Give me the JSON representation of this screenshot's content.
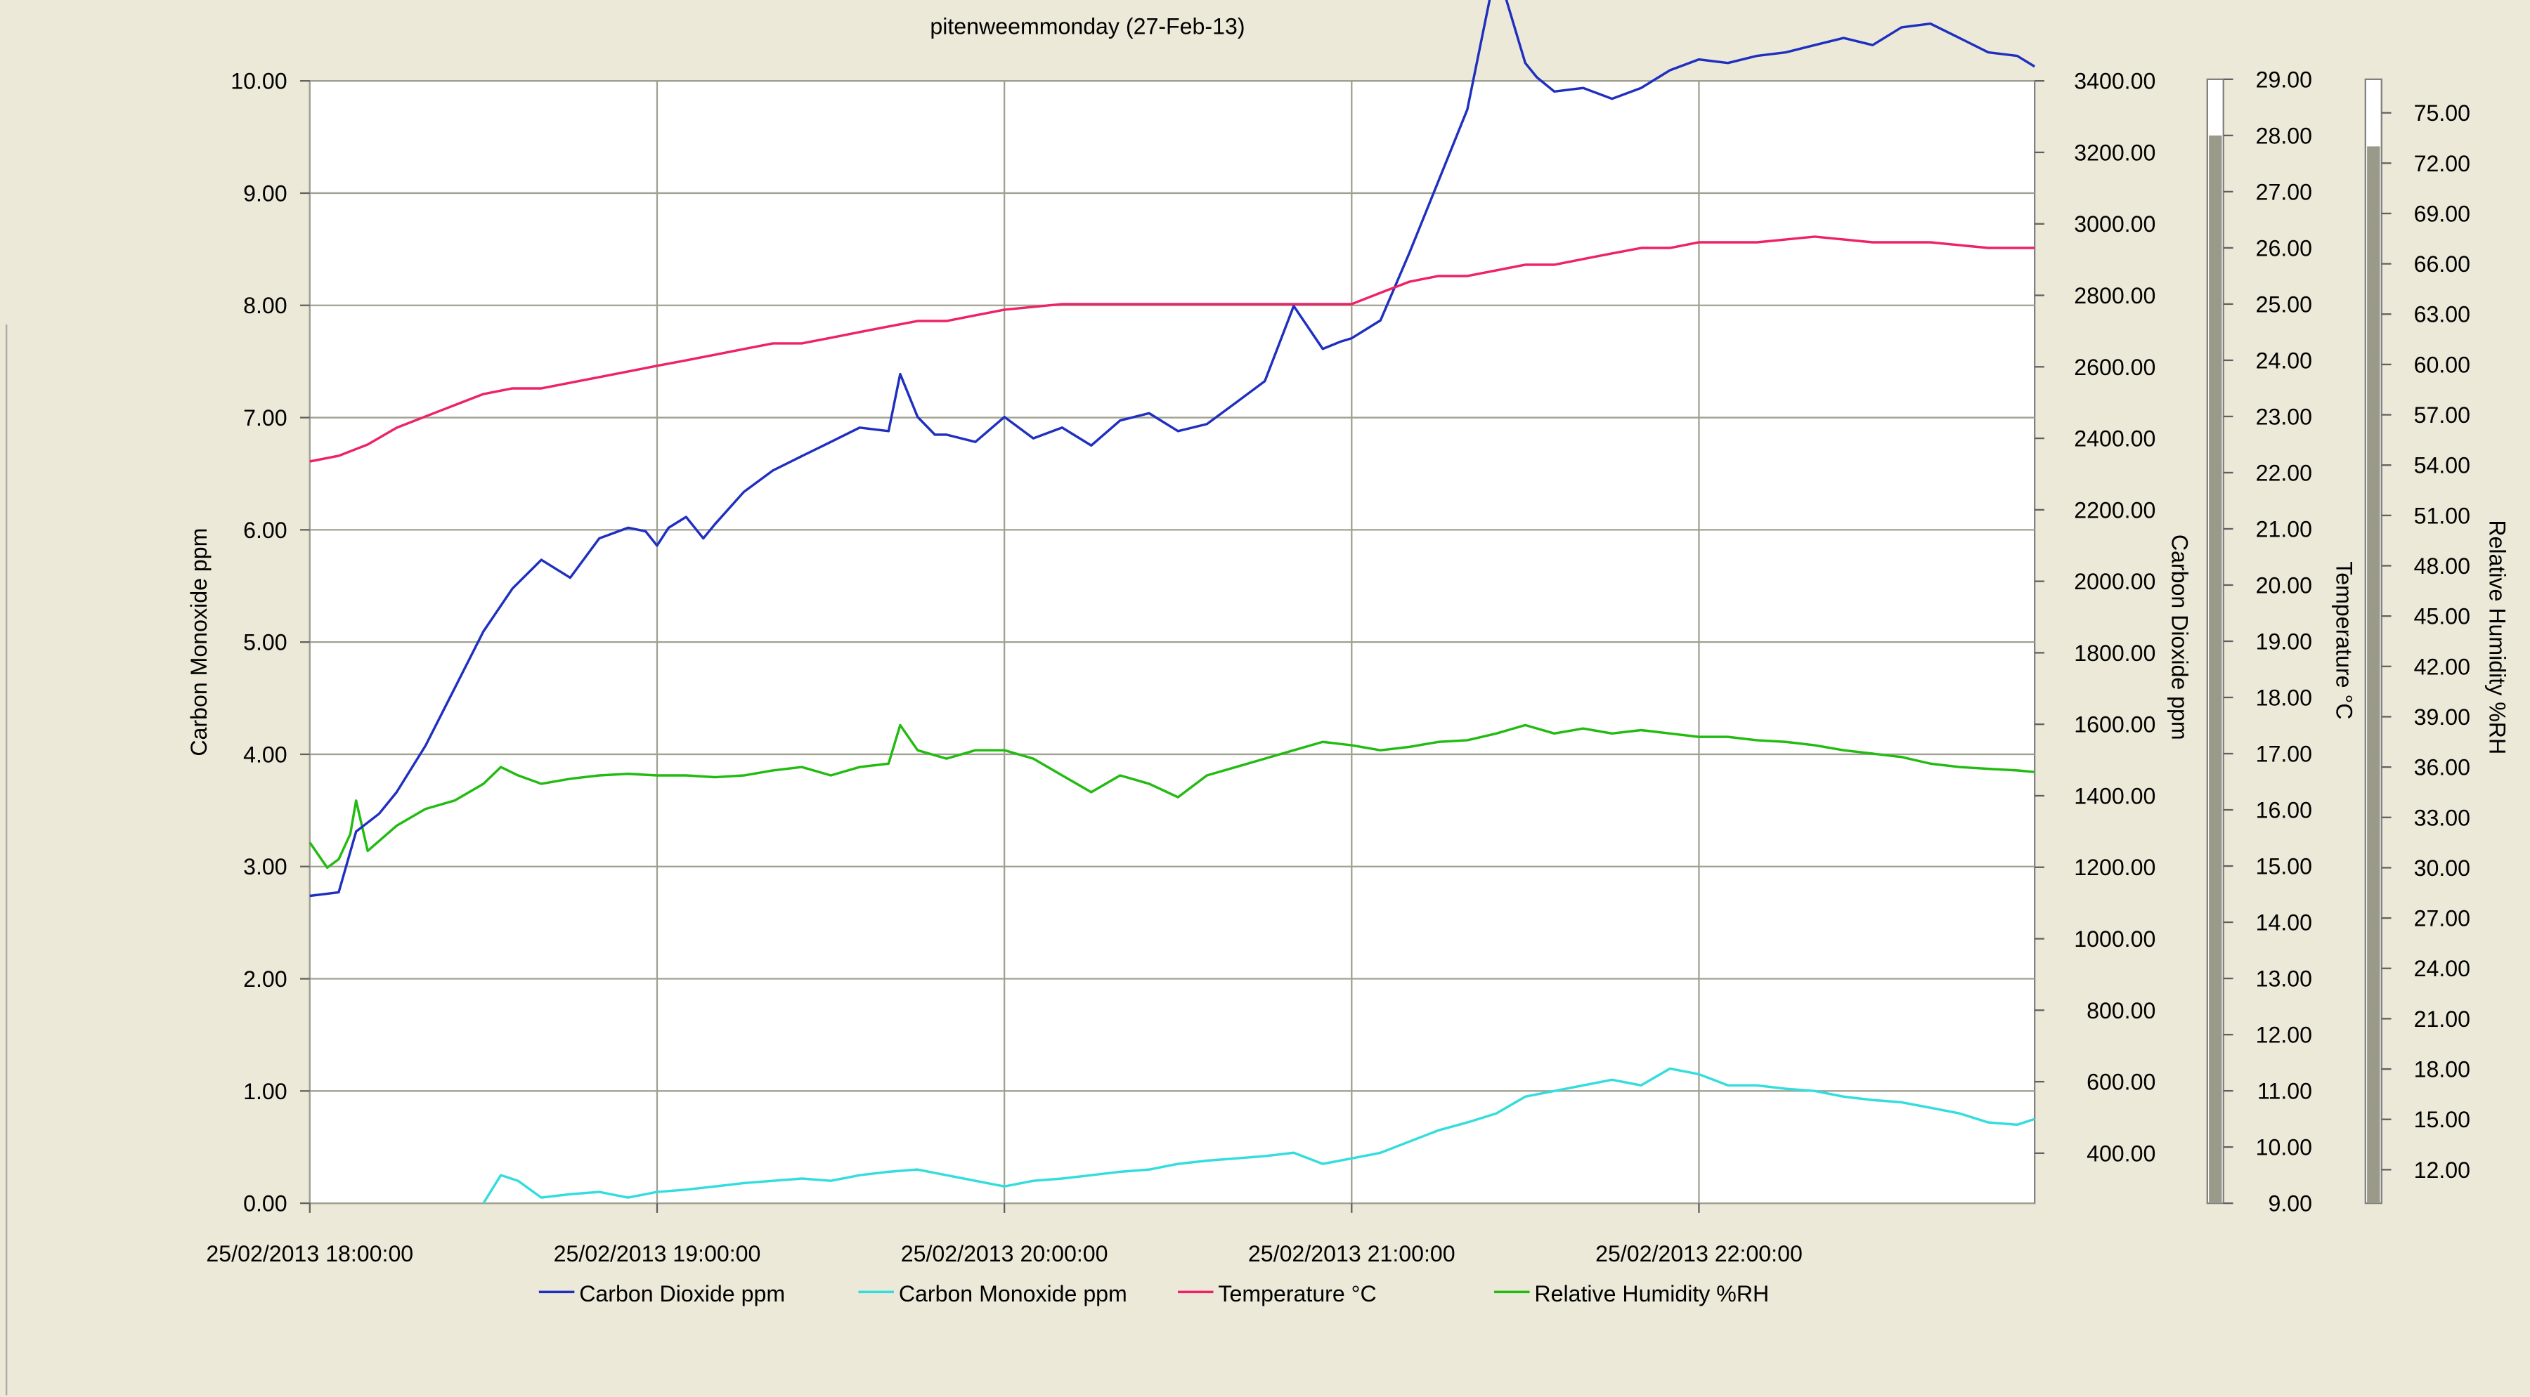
{
  "chart_data": {
    "type": "line",
    "title": "pitenweemmonday (27-Feb-13)",
    "x_axis": {
      "range": [
        "25/02/2013 18:00:00",
        "25/02/2013 22:58:00"
      ],
      "tick_labels": [
        "25/02/2013 18:00:00",
        "25/02/2013 19:00:00",
        "25/02/2013 20:00:00",
        "25/02/2013 21:00:00",
        "25/02/2013 22:00:00"
      ],
      "grid": true
    },
    "axes": {
      "co": {
        "label": "Carbon Monoxide ppm",
        "range": [
          0,
          10
        ],
        "tick_labels": [
          "0.00",
          "1.00",
          "2.00",
          "3.00",
          "4.00",
          "5.00",
          "6.00",
          "7.00",
          "8.00",
          "9.00",
          "10.00"
        ],
        "placement": "left"
      },
      "co2": {
        "label": "Carbon Dioxide ppm",
        "range": [
          260,
          3400
        ],
        "tick_labels": [
          "400.00",
          "600.00",
          "800.00",
          "1000.00",
          "1200.00",
          "1400.00",
          "1600.00",
          "1800.00",
          "2000.00",
          "2200.00",
          "2400.00",
          "2600.00",
          "2800.00",
          "3000.00",
          "3200.00",
          "3400.00"
        ],
        "placement": "right"
      },
      "temp": {
        "label": "Temperature °C",
        "range": [
          9,
          29
        ],
        "tick_labels": [
          "9.00",
          "10.00",
          "11.00",
          "12.00",
          "13.00",
          "14.00",
          "15.00",
          "16.00",
          "17.00",
          "18.00",
          "19.00",
          "20.00",
          "21.00",
          "22.00",
          "23.00",
          "24.00",
          "25.00",
          "26.00",
          "27.00",
          "28.00",
          "29.00"
        ],
        "placement": "right-gauge"
      },
      "rh": {
        "label": "Relative Humidity %RH",
        "range": [
          10,
          77
        ],
        "tick_labels": [
          "12.00",
          "15.00",
          "18.00",
          "21.00",
          "24.00",
          "27.00",
          "30.00",
          "33.00",
          "36.00",
          "39.00",
          "42.00",
          "45.00",
          "48.00",
          "51.00",
          "54.00",
          "57.00",
          "60.00",
          "63.00",
          "66.00",
          "69.00",
          "72.00",
          "75.00"
        ],
        "placement": "right-gauge"
      }
    },
    "gauges": {
      "temp_level": 28.0,
      "rh_level": 73.0
    },
    "legend": {
      "placement": "bottom"
    },
    "series": [
      {
        "name": "Carbon Dioxide ppm",
        "axis": "co2",
        "color": "#1F2FBF",
        "x": [
          "18:00",
          "18:05",
          "18:08",
          "18:12",
          "18:15",
          "18:20",
          "18:25",
          "18:30",
          "18:35",
          "18:40",
          "18:45",
          "18:50",
          "18:55",
          "18:58",
          "19:00",
          "19:02",
          "19:05",
          "19:08",
          "19:10",
          "19:15",
          "19:20",
          "19:25",
          "19:30",
          "19:35",
          "19:40",
          "19:42",
          "19:45",
          "19:48",
          "19:50",
          "19:55",
          "20:00",
          "20:05",
          "20:10",
          "20:15",
          "20:20",
          "20:25",
          "20:30",
          "20:35",
          "20:40",
          "20:45",
          "20:50",
          "20:55",
          "20:58",
          "21:00",
          "21:05",
          "21:10",
          "21:15",
          "21:20",
          "21:25",
          "21:30",
          "21:32",
          "21:35",
          "21:40",
          "21:45",
          "21:50",
          "21:55",
          "22:00",
          "22:05",
          "22:10",
          "22:15",
          "22:20",
          "22:25",
          "22:30",
          "22:35",
          "22:40",
          "22:45",
          "22:50",
          "22:55",
          "22:58"
        ],
        "values": [
          1120,
          1130,
          1300,
          1350,
          1410,
          1540,
          1700,
          1860,
          1980,
          2060,
          2010,
          2120,
          2150,
          2140,
          2100,
          2150,
          2180,
          2120,
          2160,
          2250,
          2310,
          2350,
          2390,
          2430,
          2420,
          2580,
          2460,
          2410,
          2410,
          2390,
          2460,
          2400,
          2430,
          2380,
          2450,
          2470,
          2420,
          2440,
          2500,
          2560,
          2770,
          2650,
          2670,
          2680,
          2730,
          2920,
          3120,
          3320,
          3720,
          3450,
          3410,
          3370,
          3380,
          3350,
          3380,
          3430,
          3460,
          3450,
          3470,
          3480,
          3500,
          3520,
          3500,
          3550,
          3560,
          3520,
          3480,
          3470,
          3440
        ]
      },
      {
        "name": "Carbon Monoxide ppm",
        "axis": "co",
        "color": "#33DDDD",
        "x": [
          "18:30",
          "18:33",
          "18:36",
          "18:40",
          "18:45",
          "18:50",
          "18:55",
          "19:00",
          "19:05",
          "19:10",
          "19:15",
          "19:20",
          "19:25",
          "19:30",
          "19:35",
          "19:40",
          "19:45",
          "19:50",
          "19:55",
          "20:00",
          "20:05",
          "20:10",
          "20:15",
          "20:20",
          "20:25",
          "20:30",
          "20:35",
          "20:40",
          "20:45",
          "20:50",
          "20:55",
          "21:00",
          "21:05",
          "21:10",
          "21:15",
          "21:20",
          "21:25",
          "21:30",
          "21:35",
          "21:40",
          "21:45",
          "21:50",
          "21:55",
          "22:00",
          "22:05",
          "22:10",
          "22:15",
          "22:20",
          "22:25",
          "22:30",
          "22:35",
          "22:40",
          "22:45",
          "22:50",
          "22:55",
          "22:58"
        ],
        "values": [
          0.0,
          0.25,
          0.2,
          0.05,
          0.08,
          0.1,
          0.05,
          0.1,
          0.12,
          0.15,
          0.18,
          0.2,
          0.22,
          0.2,
          0.25,
          0.28,
          0.3,
          0.25,
          0.2,
          0.15,
          0.2,
          0.22,
          0.25,
          0.28,
          0.3,
          0.35,
          0.38,
          0.4,
          0.42,
          0.45,
          0.35,
          0.4,
          0.45,
          0.55,
          0.65,
          0.72,
          0.8,
          0.95,
          1.0,
          1.05,
          1.1,
          1.05,
          1.2,
          1.15,
          1.05,
          1.05,
          1.02,
          1.0,
          0.95,
          0.92,
          0.9,
          0.85,
          0.8,
          0.72,
          0.7,
          0.75
        ]
      },
      {
        "name": "Temperature °C",
        "axis": "temp",
        "color": "#EE2266",
        "x": [
          "18:00",
          "18:05",
          "18:10",
          "18:15",
          "18:20",
          "18:25",
          "18:30",
          "18:35",
          "18:40",
          "18:45",
          "18:50",
          "18:55",
          "19:00",
          "19:05",
          "19:10",
          "19:15",
          "19:20",
          "19:25",
          "19:30",
          "19:35",
          "19:40",
          "19:45",
          "19:50",
          "19:55",
          "20:00",
          "20:10",
          "20:20",
          "20:30",
          "20:40",
          "20:50",
          "21:00",
          "21:05",
          "21:10",
          "21:15",
          "21:20",
          "21:25",
          "21:30",
          "21:35",
          "21:40",
          "21:45",
          "21:50",
          "21:55",
          "22:00",
          "22:10",
          "22:20",
          "22:30",
          "22:40",
          "22:50",
          "22:58"
        ],
        "values": [
          22.2,
          22.3,
          22.5,
          22.8,
          23.0,
          23.2,
          23.4,
          23.5,
          23.5,
          23.6,
          23.7,
          23.8,
          23.9,
          24.0,
          24.1,
          24.2,
          24.3,
          24.3,
          24.4,
          24.5,
          24.6,
          24.7,
          24.7,
          24.8,
          24.9,
          25.0,
          25.0,
          25.0,
          25.0,
          25.0,
          25.0,
          25.2,
          25.4,
          25.5,
          25.5,
          25.6,
          25.7,
          25.7,
          25.8,
          25.9,
          26.0,
          26.0,
          26.1,
          26.1,
          26.2,
          26.1,
          26.1,
          26.0,
          26.0
        ]
      },
      {
        "name": "Relative Humidity %RH",
        "axis": "rh",
        "color": "#22BB11",
        "x": [
          "18:00",
          "18:03",
          "18:05",
          "18:07",
          "18:08",
          "18:10",
          "18:15",
          "18:20",
          "18:25",
          "18:30",
          "18:33",
          "18:36",
          "18:40",
          "18:45",
          "18:50",
          "18:55",
          "19:00",
          "19:05",
          "19:10",
          "19:15",
          "19:20",
          "19:25",
          "19:30",
          "19:35",
          "19:40",
          "19:42",
          "19:45",
          "19:50",
          "19:55",
          "20:00",
          "20:05",
          "20:10",
          "20:15",
          "20:20",
          "20:25",
          "20:30",
          "20:35",
          "20:40",
          "20:45",
          "20:50",
          "20:55",
          "21:00",
          "21:05",
          "21:10",
          "21:15",
          "21:20",
          "21:25",
          "21:30",
          "21:35",
          "21:40",
          "21:45",
          "21:50",
          "21:55",
          "22:00",
          "22:05",
          "22:10",
          "22:15",
          "22:20",
          "22:25",
          "22:30",
          "22:35",
          "22:40",
          "22:45",
          "22:50",
          "22:55",
          "22:58"
        ],
        "values": [
          31.5,
          30.0,
          30.5,
          32.0,
          34.0,
          31.0,
          32.5,
          33.5,
          34.0,
          35.0,
          36.0,
          35.5,
          35.0,
          35.3,
          35.5,
          35.6,
          35.5,
          35.5,
          35.4,
          35.5,
          35.8,
          36.0,
          35.5,
          36.0,
          36.2,
          38.5,
          37.0,
          36.5,
          37.0,
          37.0,
          36.5,
          35.5,
          34.5,
          35.5,
          35.0,
          34.2,
          35.5,
          36.0,
          36.5,
          37.0,
          37.5,
          37.3,
          37.0,
          37.2,
          37.5,
          37.6,
          38.0,
          38.5,
          38.0,
          38.3,
          38.0,
          38.2,
          38.0,
          37.8,
          37.8,
          37.6,
          37.5,
          37.3,
          37.0,
          36.8,
          36.6,
          36.2,
          36.0,
          35.9,
          35.8,
          35.7
        ]
      }
    ]
  }
}
